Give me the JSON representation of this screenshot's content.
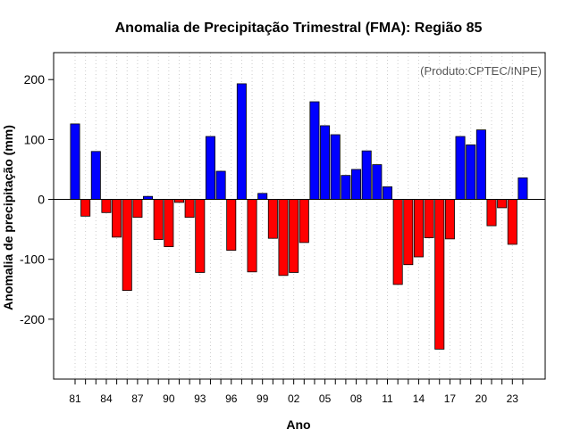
{
  "chart_data": {
    "type": "bar",
    "title": "Anomalia de Precipitação Trimestral (FMA): Região 85",
    "xlabel": "Ano",
    "ylabel": "Anomalia de precipitação (mm)",
    "credit": "(Produto:CPTEC/INPE)",
    "ylim": [
      -300,
      245
    ],
    "yticks": [
      -200,
      -100,
      0,
      100,
      200
    ],
    "grid": "vertical-dotted",
    "categories": [
      "81",
      "82",
      "83",
      "84",
      "85",
      "86",
      "87",
      "88",
      "89",
      "90",
      "91",
      "92",
      "93",
      "94",
      "95",
      "96",
      "97",
      "98",
      "99",
      "00",
      "01",
      "02",
      "03",
      "04",
      "05",
      "06",
      "07",
      "08",
      "09",
      "10",
      "11",
      "12",
      "13",
      "14",
      "15",
      "16",
      "17",
      "18",
      "19",
      "20",
      "21",
      "22",
      "23",
      "24"
    ],
    "xtick_labels": [
      "81",
      "84",
      "87",
      "90",
      "93",
      "96",
      "99",
      "02",
      "05",
      "08",
      "11",
      "14",
      "17",
      "20",
      "23"
    ],
    "values": [
      126,
      -28,
      80,
      -22,
      -63,
      -152,
      -30,
      5,
      -67,
      -79,
      -5,
      -30,
      -122,
      105,
      47,
      -85,
      193,
      -121,
      10,
      -65,
      -127,
      -122,
      -72,
      163,
      123,
      108,
      40,
      50,
      81,
      58,
      21,
      -142,
      -109,
      -96,
      -64,
      -250,
      -66,
      105,
      91,
      116,
      -44,
      -14,
      -75,
      36
    ],
    "colors": {
      "positive": "#0000ff",
      "negative": "#ff0000",
      "zero_line": "#000000",
      "grid": "#cccccc"
    }
  }
}
